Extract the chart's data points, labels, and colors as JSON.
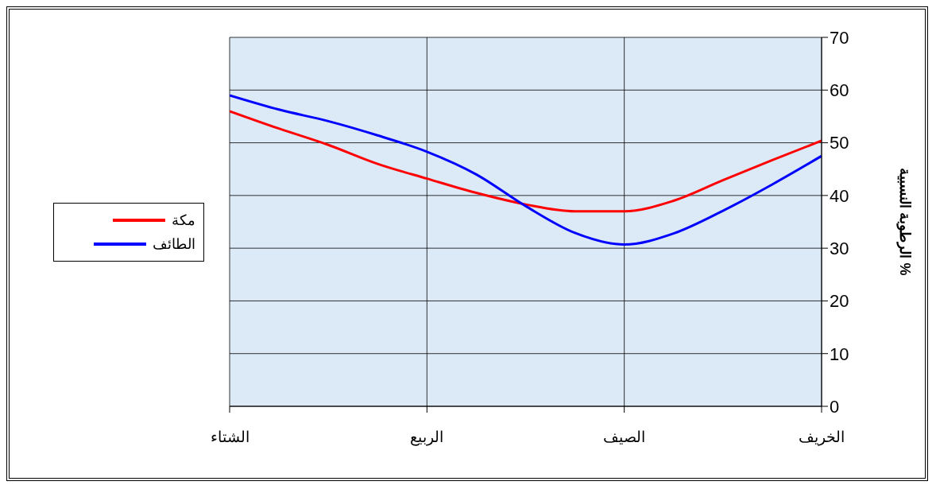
{
  "chart_data": {
    "type": "line",
    "ylabel": "الرطوبة النسبية %",
    "categories": [
      "الشتاء",
      null,
      null,
      null,
      "الربيع",
      null,
      null,
      null,
      "الصيف",
      null,
      null,
      null,
      "الخريف"
    ],
    "ylim": [
      0,
      70
    ],
    "yticks": [
      0,
      10,
      20,
      30,
      40,
      50,
      60,
      70
    ],
    "grid": true,
    "legend": "left",
    "marker": "none",
    "line_style": "solid",
    "series": [
      {
        "name": "مكة",
        "color": "#ff0000",
        "values": [
          56.0,
          52.7,
          49.6,
          46.0,
          43.2,
          40.5,
          38.3,
          37.0,
          37.0,
          39.0,
          42.9,
          46.7,
          50.4
        ]
      },
      {
        "name": "الطائف",
        "color": "#0000ff",
        "values": [
          59.0,
          56.3,
          54.1,
          51.4,
          48.3,
          44.0,
          38.0,
          32.9,
          30.7,
          32.8,
          37.1,
          42.1,
          47.5
        ]
      }
    ]
  }
}
